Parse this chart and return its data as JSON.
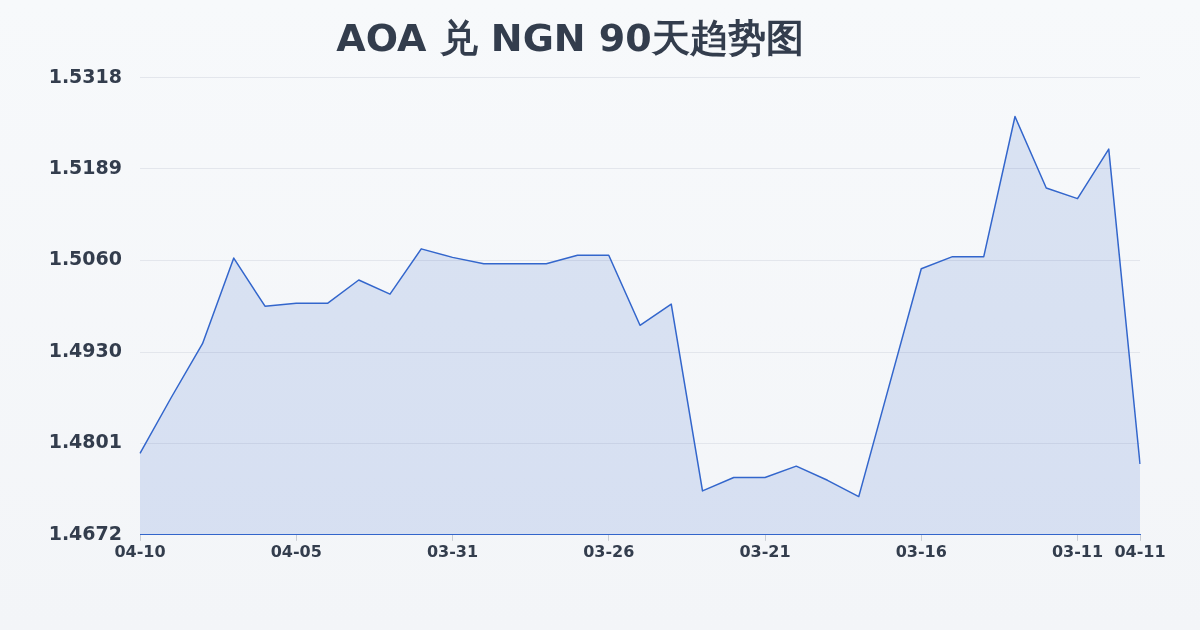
{
  "chart_data": {
    "type": "area",
    "title": "AOA 兑 NGN 90天趋势图",
    "categories": [
      "04-10",
      null,
      null,
      null,
      null,
      "04-05",
      null,
      null,
      null,
      null,
      "03-31",
      null,
      null,
      null,
      null,
      "03-26",
      null,
      null,
      null,
      null,
      "03-21",
      null,
      null,
      null,
      null,
      "03-16",
      null,
      null,
      null,
      null,
      "03-11",
      null,
      "04-11"
    ],
    "values": [
      1.4787,
      1.4866,
      1.4942,
      1.5063,
      1.4995,
      1.4999,
      1.4999,
      1.5032,
      1.5012,
      1.5076,
      1.5064,
      1.5055,
      1.5055,
      1.5055,
      1.5067,
      1.5067,
      1.4968,
      1.4998,
      1.4734,
      1.4753,
      1.4753,
      1.4769,
      1.4749,
      1.4726,
      1.4887,
      1.5048,
      1.5065,
      1.5065,
      1.5263,
      1.5162,
      1.5147,
      1.5217,
      1.4772
    ],
    "color": "#3366cc",
    "ylim": [
      1.4672,
      1.5318
    ],
    "yticks": [
      {
        "value": 1.4672,
        "label": "1.4672"
      },
      {
        "value": 1.4801,
        "label": "1.4801"
      },
      {
        "value": 1.493,
        "label": "1.4930"
      },
      {
        "value": 1.506,
        "label": "1.5060"
      },
      {
        "value": 1.5189,
        "label": "1.5189"
      },
      {
        "value": 1.5318,
        "label": "1.5318"
      }
    ],
    "grid": "y"
  }
}
